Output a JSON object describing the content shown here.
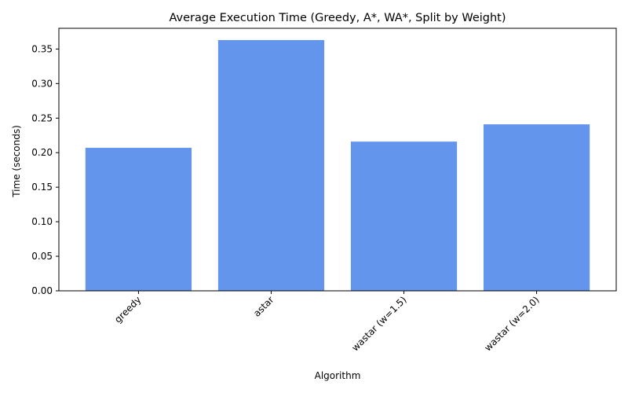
{
  "chart_data": {
    "type": "bar",
    "title": "Average Execution Time (Greedy, A*, WA*, Split by Weight)",
    "xlabel": "Algorithm",
    "ylabel": "Time (seconds)",
    "categories": [
      "greedy",
      "astar",
      "wastar (w=1.5)",
      "wastar (w=2.0)"
    ],
    "values": [
      0.207,
      0.363,
      0.216,
      0.241
    ],
    "ylim": [
      0,
      0.38
    ],
    "yticks": [
      0.0,
      0.05,
      0.1,
      0.15,
      0.2,
      0.25,
      0.3,
      0.35
    ],
    "ytick_labels": [
      "0.00",
      "0.05",
      "0.10",
      "0.15",
      "0.20",
      "0.25",
      "0.30",
      "0.35"
    ],
    "bar_color": "#6495ED",
    "grid": false,
    "legend": "none"
  }
}
